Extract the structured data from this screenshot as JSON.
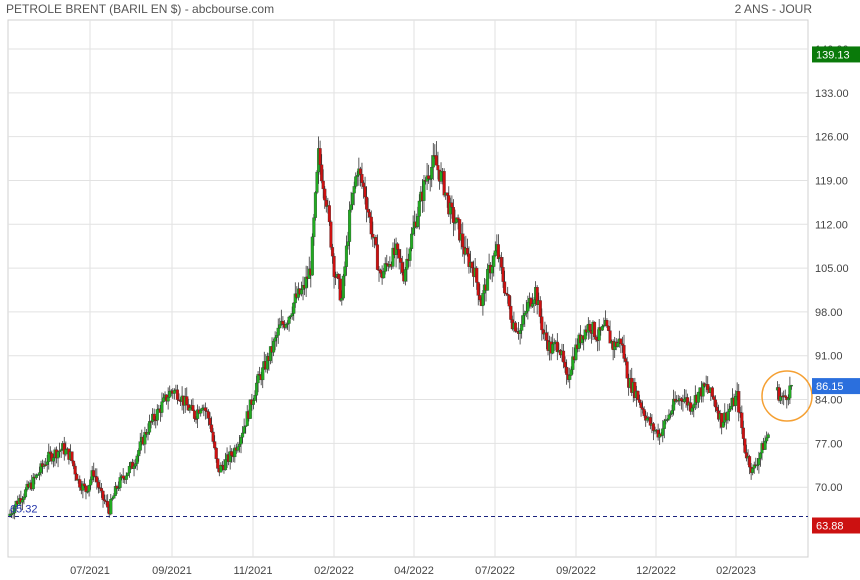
{
  "header": {
    "title": "PETROLE BRENT (BARIL EN $) - abcbourse.com",
    "period": "2 ANS - JOUR"
  },
  "colors": {
    "up": "#22aa22",
    "down": "#cc1111",
    "grid": "#e2e2e2",
    "badge_high": "#0a7a0a",
    "badge_last": "#2b6fdd",
    "badge_low": "#cc1111",
    "dashed_line": "#1a237e",
    "highlight_circle": "#f5a033"
  },
  "chart_data": {
    "type": "candlestick",
    "title": "PETROLE BRENT (BARIL EN $) - abcbourse.com",
    "period": "2 ANS - JOUR",
    "y_axis_side": "right",
    "ylim": [
      63.88,
      140.0
    ],
    "yticks": [
      "140.00",
      "133.00",
      "126.00",
      "119.00",
      "112.00",
      "105.00",
      "98.00",
      "91.00",
      "84.00",
      "77.00",
      "70.00"
    ],
    "x_tick_labels": [
      "07/2021",
      "09/2021",
      "11/2021",
      "02/2022",
      "04/2022",
      "07/2022",
      "09/2022",
      "12/2022",
      "02/2023"
    ],
    "grid": true,
    "badges": {
      "high": "139.13",
      "last": "86.15",
      "low": "63.88"
    },
    "start_marker": "65.32",
    "reference_line": 65.32,
    "series": [
      {
        "values": [
          65.3,
          67.5,
          69.0,
          70.5,
          72.5,
          74.5,
          75.5,
          76.2,
          75.0,
          71.0,
          69.5,
          72.5,
          68.5,
          66.5,
          70.0,
          72.0,
          73.5,
          76.5,
          79.5,
          81.5,
          83.5,
          85.5,
          85.0,
          83.0,
          81.5,
          83.5,
          80.5,
          72.5,
          74.0,
          75.5,
          78.5,
          82.0,
          86.5,
          89.0,
          92.0,
          95.5,
          97.0,
          100.0,
          101.5,
          105.0,
          123.0,
          116.0,
          105.0,
          100.0,
          113.0,
          121.0,
          117.0,
          110.0,
          103.5,
          106.0,
          107.5,
          104.0,
          110.0,
          115.0,
          120.0,
          122.0,
          119.0,
          114.0,
          111.5,
          107.0,
          105.0,
          99.5,
          104.5,
          108.0,
          102.0,
          96.5,
          95.0,
          99.0,
          101.5,
          94.5,
          92.0,
          93.0,
          87.0,
          91.5,
          94.5,
          96.0,
          94.0,
          95.5,
          92.5,
          93.5,
          87.0,
          85.0,
          82.0,
          79.5,
          78.5,
          81.0,
          83.5,
          84.5,
          83.0,
          85.0,
          86.0,
          84.0,
          80.5,
          82.5,
          84.5,
          76.0,
          72.5,
          75.5,
          78.5,
          85.5,
          84.0,
          86.15
        ]
      }
    ]
  }
}
